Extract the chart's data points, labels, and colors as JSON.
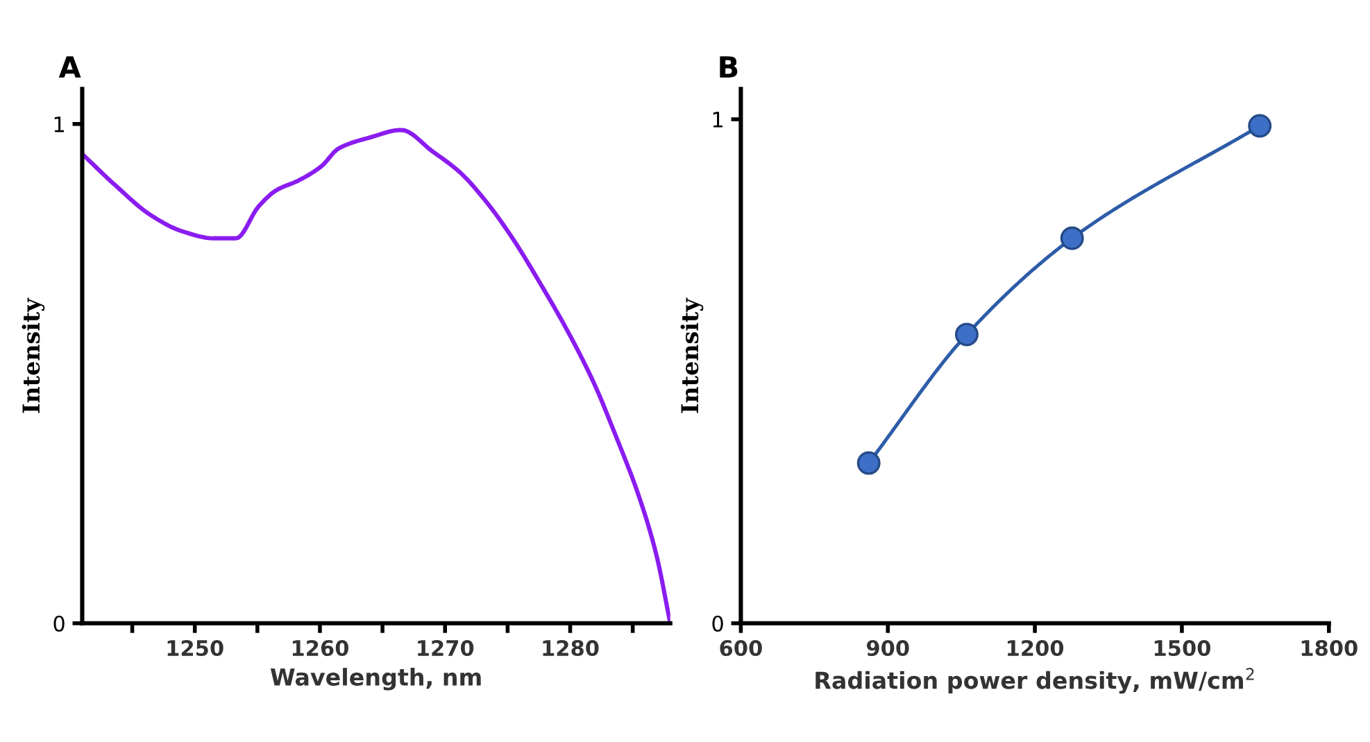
{
  "chart_data": [
    {
      "type": "line",
      "title": "A",
      "xlabel": "Wavelength, nm",
      "ylabel": "Intensity",
      "xlim": [
        1241,
        1288
      ],
      "ylim": [
        0,
        1.07
      ],
      "xticks": [
        {
          "value": 1245,
          "label": null
        },
        1250,
        {
          "value": 1255,
          "label": null
        },
        1260,
        {
          "value": 1265,
          "label": null
        },
        1270,
        {
          "value": 1275,
          "label": null
        },
        1280,
        {
          "value": 1285,
          "label": null
        }
      ],
      "yticks": [
        0,
        1
      ],
      "grid": false,
      "marker": "none",
      "line_style": "solid",
      "series": [
        {
          "color": "#8a1cf0",
          "x": [
            1241,
            1243.7,
            1246.5,
            1249.0,
            1251.5,
            1253.3,
            1255.1,
            1256.5,
            1258.3,
            1260.1,
            1261.5,
            1264.0,
            1266.5,
            1269.0,
            1271.2,
            1273.3,
            1275.4,
            1277.6,
            1279.8,
            1281.9,
            1283.7,
            1285.5,
            1286.9,
            1288
          ],
          "values": [
            0.94,
            0.876,
            0.817,
            0.785,
            0.771,
            0.771,
            0.835,
            0.867,
            0.887,
            0.915,
            0.951,
            0.973,
            0.988,
            0.945,
            0.903,
            0.844,
            0.771,
            0.681,
            0.585,
            0.481,
            0.372,
            0.254,
            0.136,
            0
          ]
        }
      ]
    },
    {
      "type": "line",
      "title": "B",
      "xlabel": "Radiation power density, mW/cm$^{2}$",
      "ylabel": "Intensity",
      "xlim": [
        600,
        1800
      ],
      "ylim": [
        0,
        1.06
      ],
      "xticks": [
        600,
        900,
        1200,
        1500,
        1800
      ],
      "yticks": [
        0,
        1
      ],
      "grid": false,
      "marker": "circle",
      "line_style": "solid",
      "series": [
        {
          "color": "#2d5ca8",
          "x": [
            861,
            1061,
            1276,
            1659
          ],
          "values": [
            0.318,
            0.573,
            0.764,
            0.987
          ]
        }
      ]
    }
  ]
}
